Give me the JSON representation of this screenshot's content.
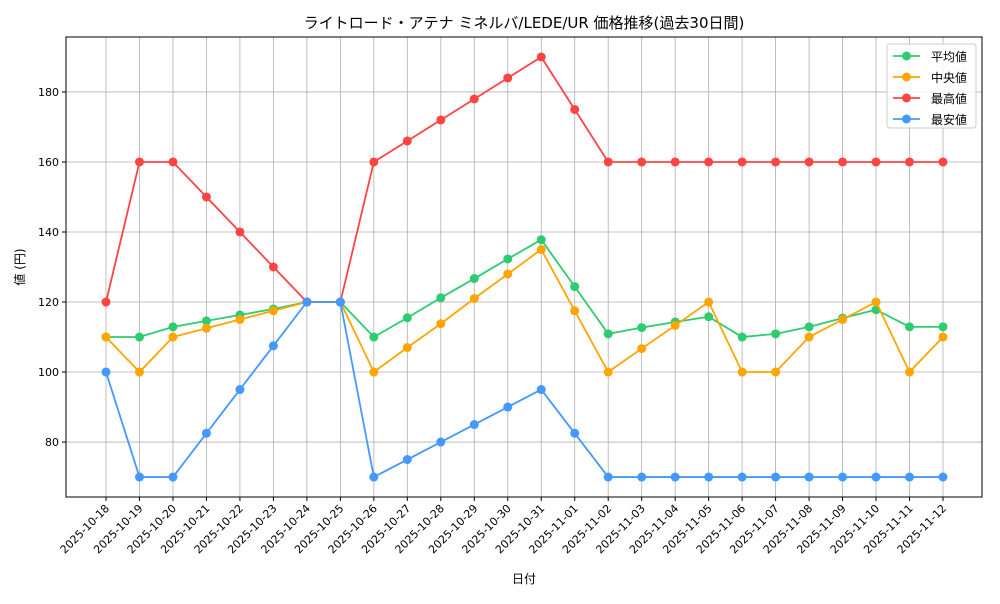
{
  "chart_data": {
    "type": "line",
    "title": "ライトロード・アテナ ミネルバ/LEDE/UR 価格推移(過去30日間)",
    "xlabel": "日付",
    "ylabel": "値 (円)",
    "ylim": [
      64.3,
      195.7
    ],
    "yticks": [
      80,
      100,
      120,
      140,
      160,
      180
    ],
    "grid": true,
    "legend_position": "top-right",
    "x": [
      "2025-10-18",
      "2025-10-19",
      "2025-10-20",
      "2025-10-21",
      "2025-10-22",
      "2025-10-23",
      "2025-10-24",
      "2025-10-25",
      "2025-10-26",
      "2025-10-27",
      "2025-10-28",
      "2025-10-29",
      "2025-10-30",
      "2025-10-31",
      "2025-11-01",
      "2025-11-02",
      "2025-11-03",
      "2025-11-04",
      "2025-11-05",
      "2025-11-06",
      "2025-11-07",
      "2025-11-08",
      "2025-11-09",
      "2025-11-10",
      "2025-11-11",
      "2025-11-12"
    ],
    "series": [
      {
        "name": "平均値",
        "color": "#2ecc71",
        "values": [
          110,
          110,
          112.9,
          114.6,
          116.3,
          118,
          120,
          120,
          110,
          115.5,
          121.2,
          126.7,
          132.3,
          137.8,
          124.4,
          110.9,
          112.7,
          114.3,
          115.8,
          110,
          110.9,
          112.9,
          115.4,
          117.8,
          112.9,
          112.9
        ]
      },
      {
        "name": "中央値",
        "color": "#ffa500",
        "values": [
          110,
          100,
          110,
          112.5,
          115,
          117.5,
          120,
          120,
          100,
          107,
          113.8,
          121,
          128,
          135,
          117.5,
          100,
          106.7,
          113.3,
          120,
          100,
          100,
          110,
          115,
          120,
          100,
          110
        ]
      },
      {
        "name": "最高値",
        "color": "#ff4444",
        "values": [
          120,
          160,
          160,
          150,
          140,
          130,
          120,
          120,
          160,
          166,
          172,
          178,
          184,
          190,
          175,
          160,
          160,
          160,
          160,
          160,
          160,
          160,
          160,
          160,
          160,
          160
        ]
      },
      {
        "name": "最安値",
        "color": "#4499ff",
        "values": [
          100,
          70,
          70,
          82.5,
          95,
          107.5,
          120,
          120,
          70,
          75,
          80,
          85,
          90,
          95,
          82.5,
          70,
          70,
          70,
          70,
          70,
          70,
          70,
          70,
          70,
          70,
          70
        ]
      }
    ]
  }
}
